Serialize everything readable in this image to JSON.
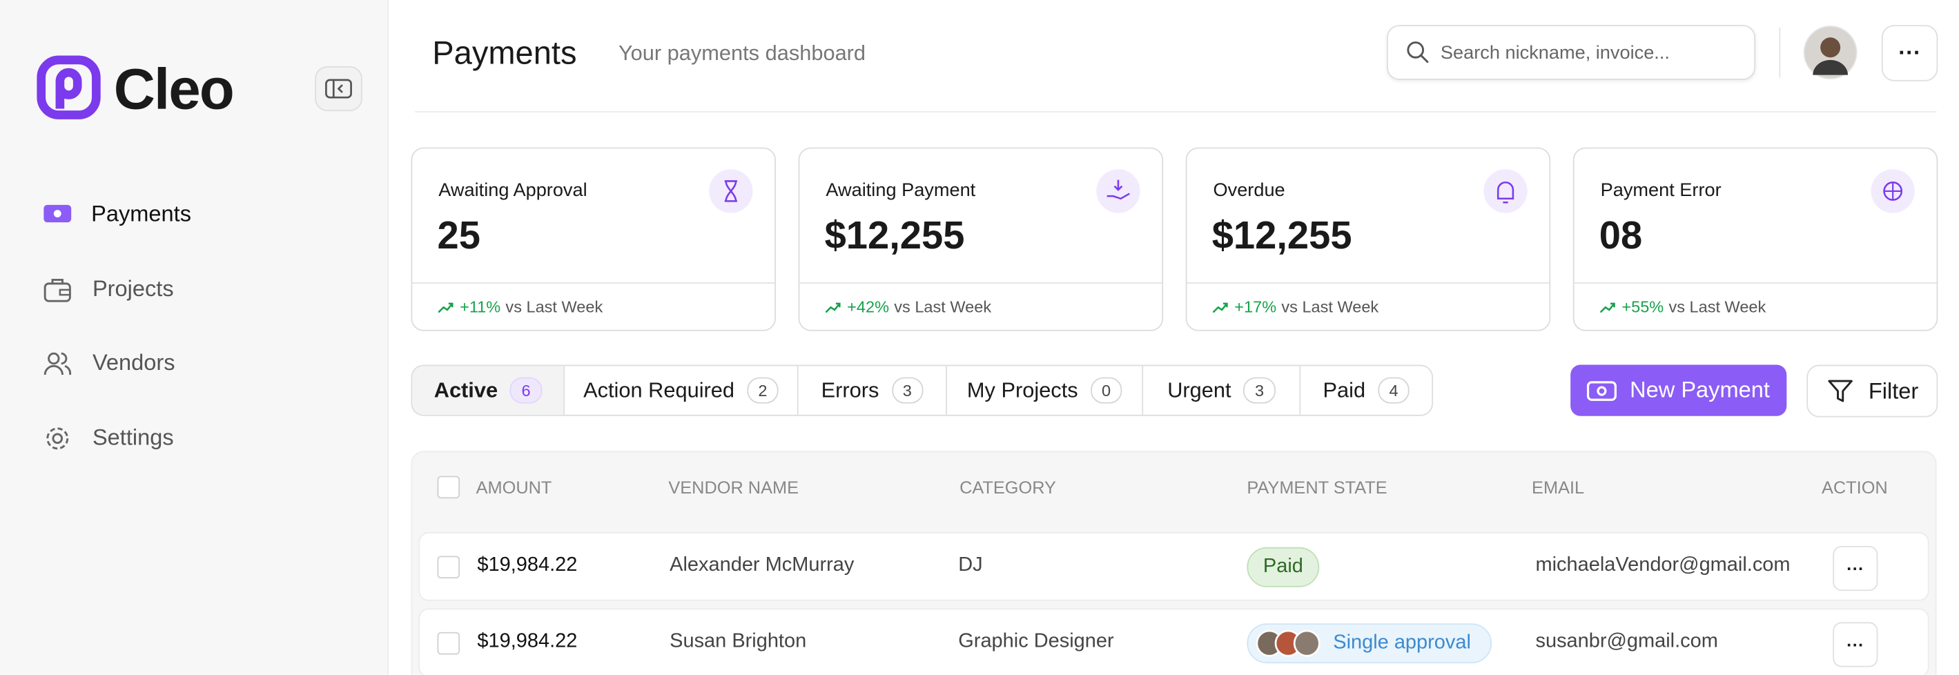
{
  "brand": "Cleo",
  "nav": [
    "Payments",
    "Projects",
    "Vendors",
    "Settings"
  ],
  "header": {
    "title": "Payments",
    "subtitle": "Your payments dashboard",
    "search_placeholder": "Search nickname, invoice..."
  },
  "stats": [
    {
      "label": "Awaiting Approval",
      "value": "25",
      "change": "+11%",
      "change_text": "vs Last Week"
    },
    {
      "label": "Awaiting Payment",
      "value": "$12,255",
      "change": "+42%",
      "change_text": "vs Last Week"
    },
    {
      "label": "Overdue",
      "value": "$12,255",
      "change": "+17%",
      "change_text": "vs Last Week"
    },
    {
      "label": "Payment Error",
      "value": "08",
      "change": "+55%",
      "change_text": "vs Last Week"
    }
  ],
  "tabs": [
    {
      "label": "Active",
      "count": 6
    },
    {
      "label": "Action Required",
      "count": 2
    },
    {
      "label": "Errors",
      "count": 3
    },
    {
      "label": "My Projects",
      "count": 0
    },
    {
      "label": "Urgent",
      "count": 3
    },
    {
      "label": "Paid",
      "count": 4
    }
  ],
  "actions": {
    "new_payment": "New Payment",
    "filter": "Filter"
  },
  "table": {
    "columns": [
      "AMOUNT",
      "VENDOR NAME",
      "CATEGORY",
      "PAYMENT STATE",
      "EMAIL",
      "ACTION"
    ],
    "rows": [
      [
        "$19,984.22",
        "Alexander McMurray",
        "DJ",
        "Paid",
        "michaelaVendor@gmail.com"
      ],
      [
        "$19,984.22",
        "Susan Brighton",
        "Graphic Designer",
        "Single approval",
        "susanbr@gmail.com"
      ]
    ]
  }
}
